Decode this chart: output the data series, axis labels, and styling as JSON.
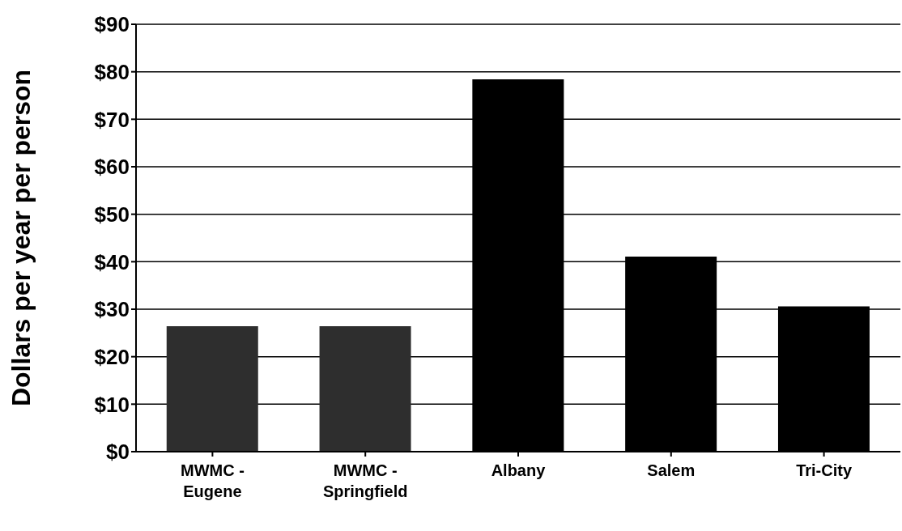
{
  "chart_data": {
    "type": "bar",
    "ylabel": "Dollars per year per person",
    "categories": [
      "MWMC -\nEugene",
      "MWMC -\nSpringfield",
      "Albany",
      "Salem",
      "Tri-City"
    ],
    "values": [
      26.4,
      26.4,
      78.4,
      41.1,
      30.6
    ],
    "colors": [
      "#2e2e2e",
      "#2e2e2e",
      "#000000",
      "#000000",
      "#000000"
    ],
    "ylim": [
      0,
      90
    ],
    "yticks": [
      {
        "value": 0,
        "label": "$0"
      },
      {
        "value": 10,
        "label": "$10"
      },
      {
        "value": 20,
        "label": "$20"
      },
      {
        "value": 30,
        "label": "$30"
      },
      {
        "value": 40,
        "label": "$40"
      },
      {
        "value": 50,
        "label": "$50"
      },
      {
        "value": 60,
        "label": "$60"
      },
      {
        "value": 70,
        "label": "$70"
      },
      {
        "value": 80,
        "label": "$80"
      },
      {
        "value": 90,
        "label": "$90"
      }
    ],
    "grid": "y"
  }
}
